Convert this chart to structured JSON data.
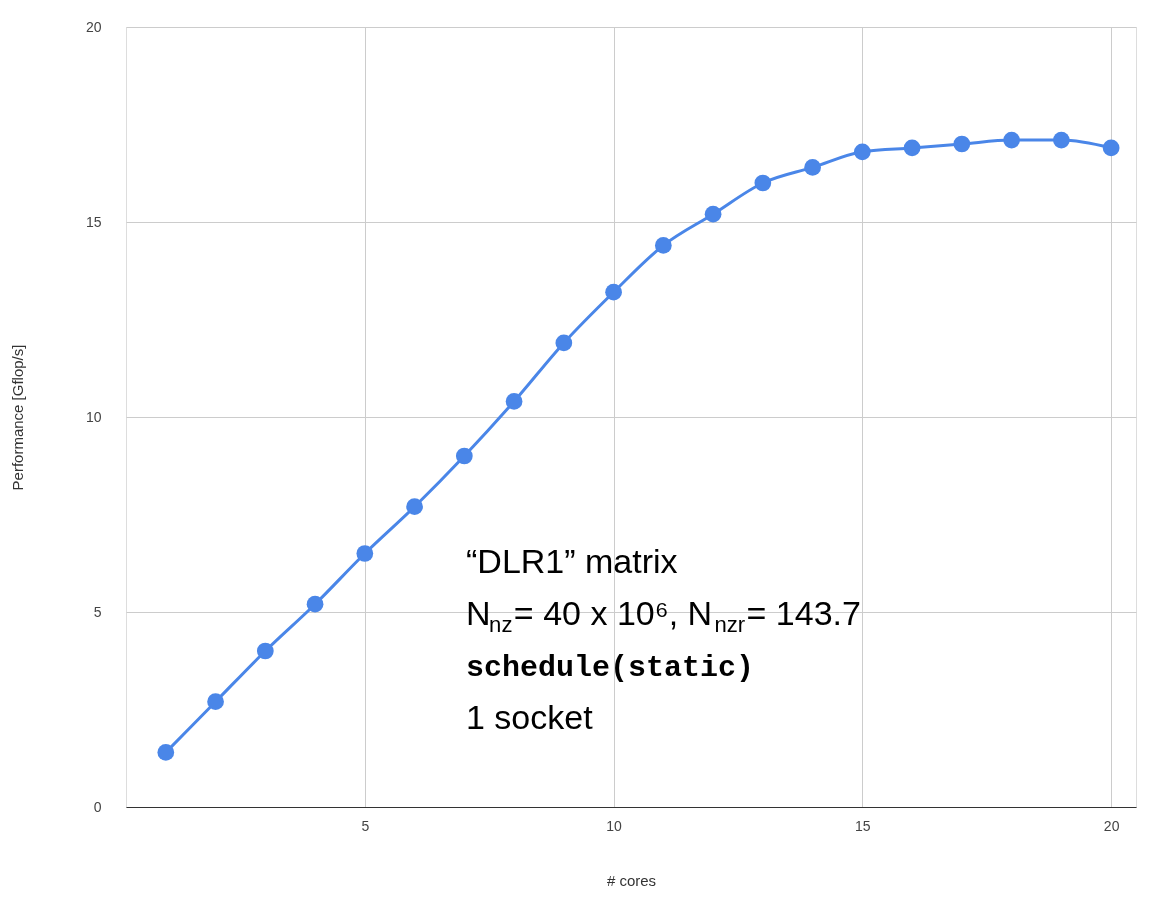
{
  "chart_data": {
    "type": "line",
    "xlabel": "# cores",
    "ylabel": "Performance [Gflop/s]",
    "x": [
      1,
      2,
      3,
      4,
      5,
      6,
      7,
      8,
      9,
      10,
      11,
      12,
      13,
      14,
      15,
      16,
      17,
      18,
      19,
      20
    ],
    "series": [
      {
        "color": "#4a86e8",
        "values": [
          1.4,
          2.7,
          4.0,
          5.2,
          6.5,
          7.7,
          9.0,
          10.4,
          11.9,
          13.2,
          14.4,
          15.2,
          16.0,
          16.4,
          16.8,
          16.9,
          17.0,
          17.1,
          17.1,
          16.9
        ]
      }
    ],
    "xlim": [
      0.2,
      20.5
    ],
    "xticks": [
      5,
      10,
      15,
      20
    ],
    "ylim": [
      0,
      20
    ],
    "yticks": [
      0,
      5,
      10,
      15,
      20
    ],
    "grid": true,
    "marker": "circle",
    "line_style": "solid",
    "annotations": [
      "“DLR1” matrix",
      "N$_{nz}$= 40 x 10⁶, N$_{nzr}$= 143.7",
      "schedule(static)",
      "1 socket"
    ]
  }
}
